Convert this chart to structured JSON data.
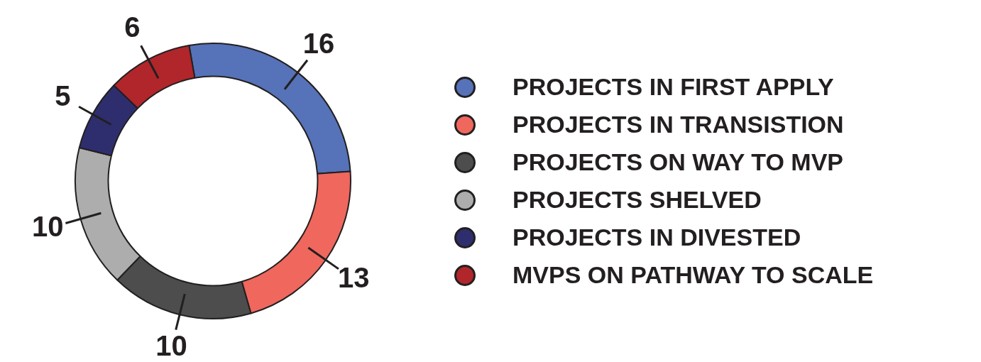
{
  "chart_data": {
    "type": "donut",
    "categories": [
      "PROJECTS IN FIRST APPLY",
      "PROJECTS IN TRANSISTION",
      "PROJECTS ON WAY TO MVP",
      "PROJECTS SHELVED",
      "PROJECTS IN DIVESTED",
      "MVPS ON PATHWAY TO SCALE"
    ],
    "values": [
      16,
      13,
      10,
      10,
      5,
      6
    ],
    "colors": [
      "#5672b8",
      "#f0675e",
      "#4d4d4d",
      "#adadad",
      "#2e2e6e",
      "#b0262b"
    ],
    "data_labels": true,
    "legend": "right"
  }
}
